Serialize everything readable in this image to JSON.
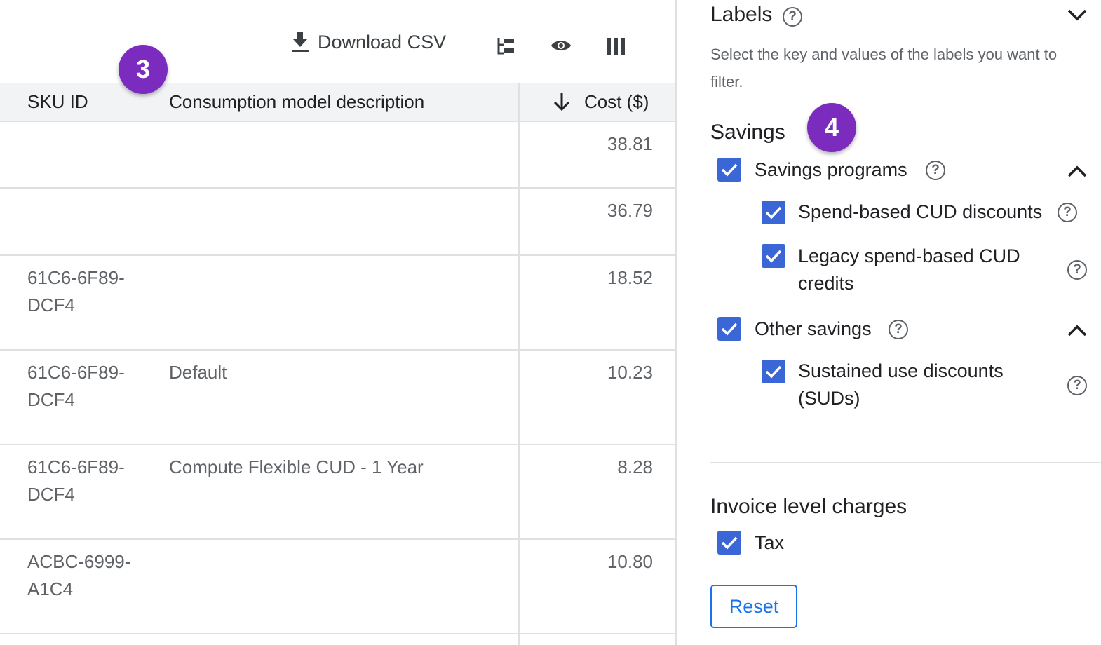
{
  "toolbar": {
    "download_label": "Download CSV",
    "icons": [
      "download-icon",
      "hierarchy-icon",
      "eye-icon",
      "columns-icon"
    ]
  },
  "table": {
    "headers": {
      "sku": "SKU ID",
      "desc": "Consumption model description",
      "cost": "Cost ($)"
    },
    "sort": "descending",
    "rows": [
      {
        "sku": "",
        "desc": "",
        "cost": "38.81"
      },
      {
        "sku": "",
        "desc": "",
        "cost": "36.79"
      },
      {
        "sku": "61C6-6F89-DCF4",
        "desc": "",
        "cost": "18.52"
      },
      {
        "sku": "61C6-6F89-DCF4",
        "desc": "Default",
        "cost": "10.23"
      },
      {
        "sku": "61C6-6F89-DCF4",
        "desc": "Compute Flexible CUD - 1 Year",
        "cost": "8.28"
      },
      {
        "sku": "ACBC-6999-A1C4",
        "desc": "",
        "cost": "10.80"
      }
    ]
  },
  "badges": {
    "b3": "3",
    "b4": "4"
  },
  "filters": {
    "labels_title": "Labels",
    "labels_desc": "Select the key and values of the labels you want to filter.",
    "savings_title": "Savings",
    "savings_programs": "Savings programs",
    "spend_based": "Spend-based CUD discounts",
    "legacy": "Legacy spend-based CUD credits",
    "other_savings": "Other savings",
    "suds": "Sustained use discounts (SUDs)",
    "invoice_title": "Invoice level charges",
    "tax": "Tax",
    "reset": "Reset"
  },
  "colors": {
    "checkbox": "#3b66d6",
    "badge": "#7b2cbf",
    "accent": "#1a73e8"
  }
}
